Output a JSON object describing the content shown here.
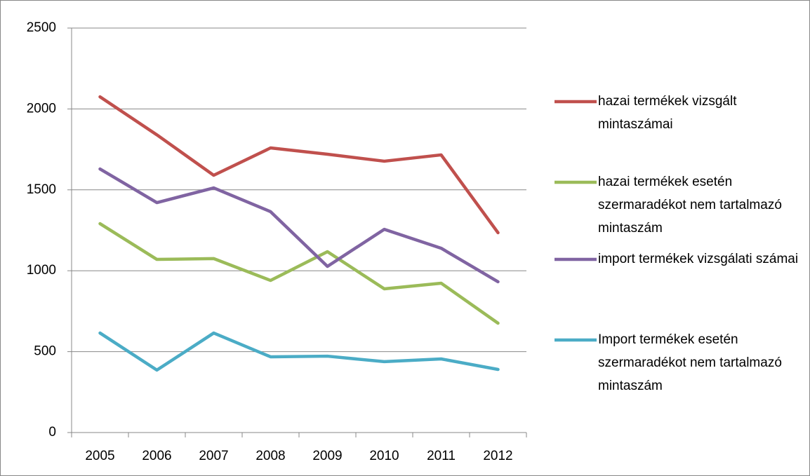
{
  "chart_data": {
    "type": "line",
    "categories": [
      "2005",
      "2006",
      "2007",
      "2008",
      "2009",
      "2010",
      "2011",
      "2012"
    ],
    "series": [
      {
        "name": "hazai termékek vizsgált mintaszámai",
        "color": "#c0504d",
        "values": [
          2075,
          1840,
          1590,
          1759,
          1720,
          1677,
          1716,
          1235
        ]
      },
      {
        "name": "hazai termékek esetén szermaradékot nem tartalmazó mintaszám",
        "color": "#9bbb59",
        "values": [
          1291,
          1070,
          1075,
          940,
          1118,
          888,
          923,
          676
        ]
      },
      {
        "name": "import termékek vizsgálati számai",
        "color": "#8064a2",
        "values": [
          1629,
          1421,
          1512,
          1365,
          1027,
          1256,
          1139,
          932
        ]
      },
      {
        "name": "Import termékek esetén szermaradékot nem tartalmazó mintaszám",
        "color": "#4bacc6",
        "values": [
          615,
          386,
          615,
          468,
          472,
          438,
          455,
          390
        ]
      }
    ],
    "ylim": [
      0,
      2500
    ],
    "yticks": [
      0,
      500,
      1000,
      1500,
      2000,
      2500
    ],
    "grid": true,
    "legend": "right"
  }
}
